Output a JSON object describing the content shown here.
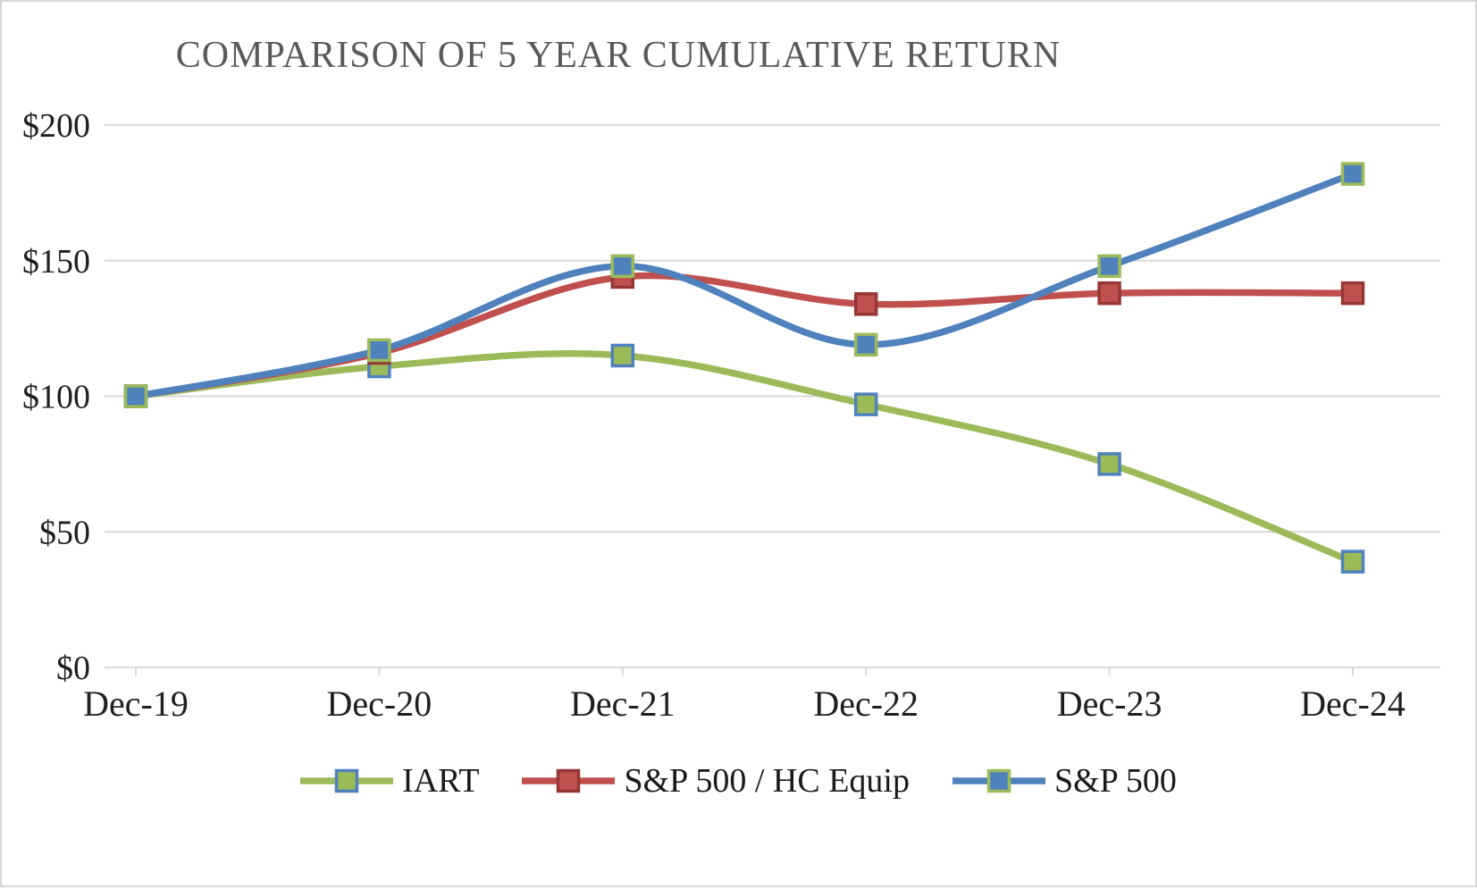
{
  "title": "COMPARISON OF 5 YEAR CUMULATIVE RETURN",
  "chart_data": {
    "type": "line",
    "title": "COMPARISON OF 5 YEAR CUMULATIVE RETURN",
    "categories": [
      "Dec-19",
      "Dec-20",
      "Dec-21",
      "Dec-22",
      "Dec-23",
      "Dec-24"
    ],
    "series": [
      {
        "name": "IART",
        "color": "#9bbb59",
        "marker_fill": "#9bbb59",
        "marker_stroke": "#4f81bd",
        "values": [
          100,
          111,
          115,
          97,
          75,
          39
        ]
      },
      {
        "name": "S&P 500 / HC Equip",
        "color": "#c0504d",
        "marker_fill": "#c0504d",
        "marker_stroke": "#953735",
        "values": [
          100,
          116,
          144,
          134,
          138,
          138
        ]
      },
      {
        "name": "S&P 500",
        "color": "#4f81bd",
        "marker_fill": "#4f81bd",
        "marker_stroke": "#9bbb59",
        "values": [
          100,
          117,
          148,
          119,
          148,
          182
        ]
      }
    ],
    "y_tick_labels": [
      "$0",
      "$50",
      "$100",
      "$150",
      "$200"
    ],
    "ylim": [
      0,
      200
    ],
    "y_tick_step": 50,
    "xlabel": "",
    "ylabel": "",
    "grid": true,
    "legend_position": "bottom",
    "gridline_color": "#d9d9d9",
    "axis_text_color": "#1f1f1f",
    "title_color": "#595959"
  }
}
